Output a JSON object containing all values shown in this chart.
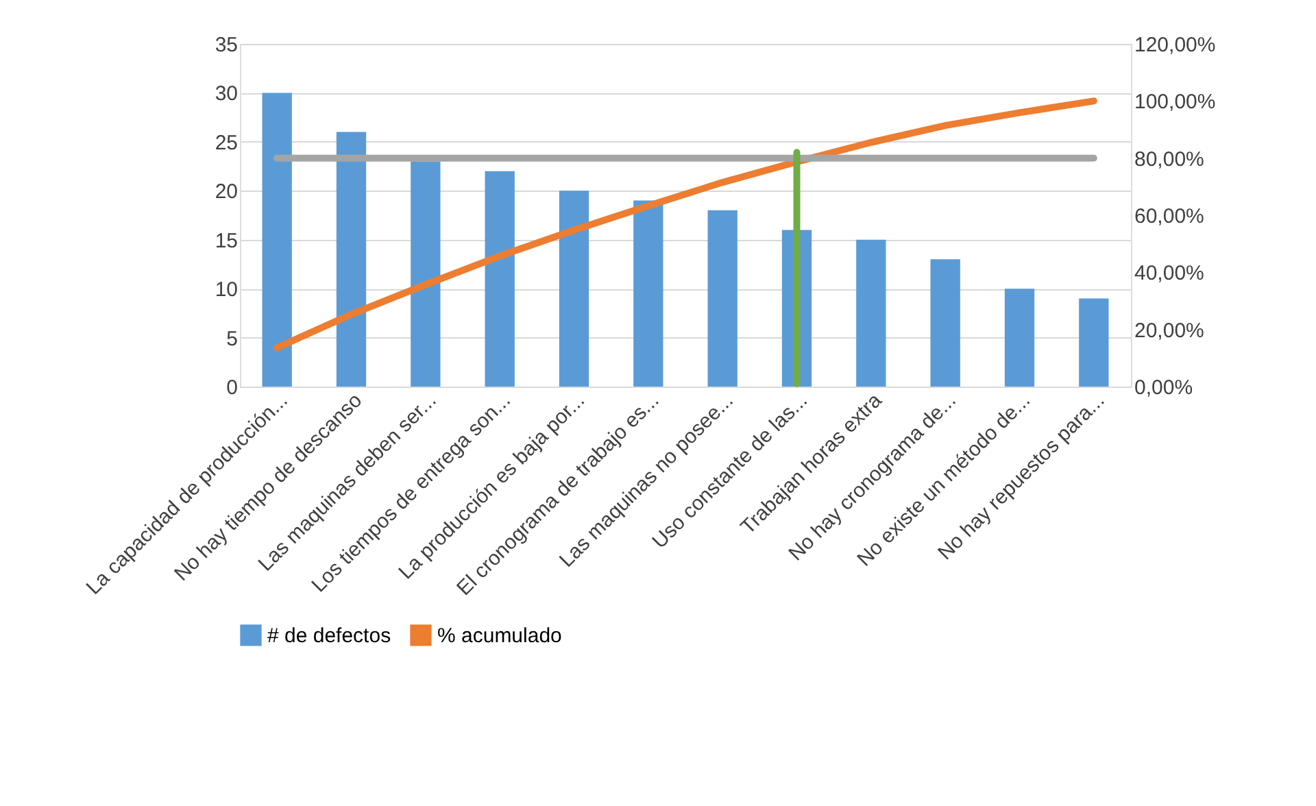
{
  "chart_data": {
    "type": "bar",
    "categories": [
      "La capacidad de producción...",
      "No hay tiempo de descanso",
      "Las maquinas deben ser...",
      "Los tiempos de entrega son...",
      "La producción es baja por...",
      "El cronograma de trabajo es...",
      "Las maquinas no posee...",
      "Uso constante de las...",
      "Trabajan horas extra",
      "No hay cronograma de...",
      "No existe un método de...",
      "No hay repuestos para..."
    ],
    "series": [
      {
        "name": "# de defectos",
        "color": "#5b9bd5",
        "values": [
          30,
          26,
          23,
          22,
          20,
          19,
          18,
          16,
          15,
          13,
          10,
          9
        ]
      },
      {
        "name": "% acumulado",
        "type": "line",
        "axis": "y2",
        "color": "#ed7d31",
        "values": [
          13.6,
          25.3,
          35.7,
          45.7,
          54.8,
          63.3,
          71.5,
          78.7,
          85.5,
          91.4,
          95.9,
          100
        ]
      },
      {
        "type": "line",
        "axis": "y2",
        "color": "#a5a5a5",
        "values": [
          80,
          80,
          80,
          80,
          80,
          80,
          80,
          80,
          80,
          80,
          80,
          80
        ]
      },
      {
        "type": "line",
        "axis": "y2",
        "color": "#70ad47",
        "x": [
          "Uso constante de las...",
          "Uso constante de las..."
        ],
        "values": [
          1,
          82
        ]
      }
    ],
    "ylim": [
      0,
      35
    ],
    "yticks": [
      0,
      5,
      10,
      15,
      20,
      25,
      30,
      35
    ],
    "y2lim": [
      0,
      120
    ],
    "y2ticks": [
      {
        "value": 0,
        "label": "0,00%"
      },
      {
        "value": 20,
        "label": "20,00%"
      },
      {
        "value": 40,
        "label": "40,00%"
      },
      {
        "value": 60,
        "label": "60,00%"
      },
      {
        "value": 80,
        "label": "80,00%"
      },
      {
        "value": 100,
        "label": "100,00%"
      },
      {
        "value": 120,
        "label": "120,00%"
      }
    ],
    "grid": "y",
    "legend": "bottom"
  }
}
